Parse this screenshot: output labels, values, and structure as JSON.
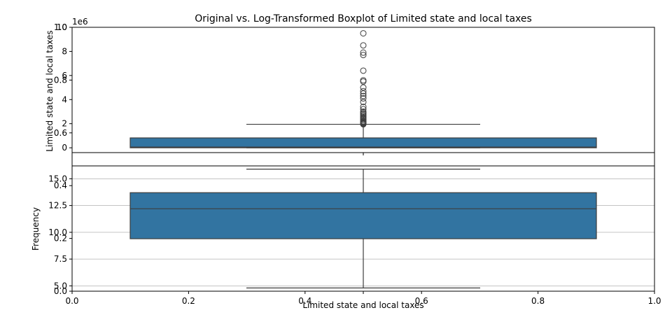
{
  "title": "Original vs. Log-Transformed Boxplot of Limited state and local taxes",
  "colors": {
    "box_fill": "#3274a1",
    "line": "#3d3d3d",
    "grid": "#b0b0b0",
    "axis": "#000000"
  },
  "outer_axes": {
    "xlabel": "Limited state and local taxes",
    "ylabel": "Frequency",
    "xlim": [
      0.0,
      1.0
    ],
    "ylim": [
      0.0,
      1.0
    ],
    "xticks": [
      "0.0",
      "0.2",
      "0.4",
      "0.6",
      "0.8",
      "1.0"
    ],
    "yticks": [
      "0.0",
      "0.2",
      "0.4",
      "0.6",
      "0.8",
      "1.0"
    ]
  },
  "chart_data": [
    {
      "type": "boxplot",
      "panel": "top",
      "ylabel": "Limited state and local taxes",
      "y_offset_label": "1e6",
      "ylim": [
        -0.4,
        10
      ],
      "yticks": [
        0,
        2,
        4,
        6,
        8,
        10
      ],
      "grid": false,
      "box": {
        "q1": 0.0,
        "median": 0.06,
        "q3": 0.82,
        "whisker_low": 0.0,
        "whisker_high": 1.95
      },
      "outliers": [
        1.95,
        2.0,
        2.05,
        2.1,
        2.15,
        2.2,
        2.3,
        2.4,
        2.5,
        2.6,
        2.7,
        2.8,
        2.9,
        3.0,
        3.2,
        3.4,
        3.8,
        4.1,
        4.3,
        4.5,
        4.7,
        5.0,
        5.5,
        5.6,
        6.4,
        7.7,
        7.9,
        8.5,
        9.5
      ]
    },
    {
      "type": "boxplot",
      "panel": "bottom",
      "ylabel": "",
      "ylim": [
        4.5,
        16.2
      ],
      "yticks": [
        5.0,
        7.5,
        10.0,
        12.5,
        15.0
      ],
      "ytick_labels": [
        "5.0",
        "7.5",
        "10.0",
        "12.5",
        "15.0"
      ],
      "grid": true,
      "box": {
        "q1": 9.4,
        "median": 12.2,
        "q3": 13.7,
        "whisker_low": 4.8,
        "whisker_high": 15.9
      },
      "outliers": []
    }
  ]
}
